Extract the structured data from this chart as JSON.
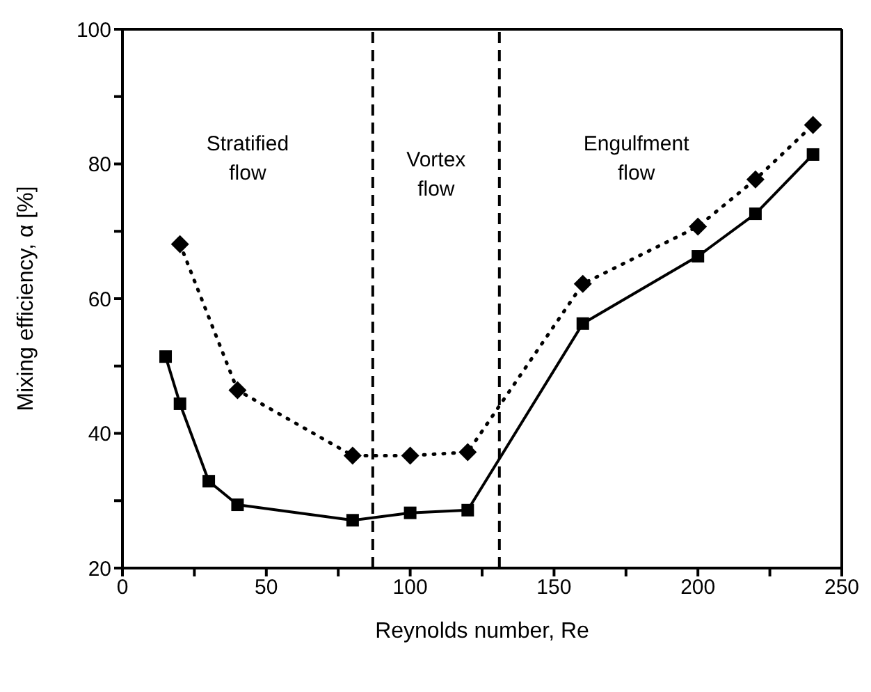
{
  "chart_data": {
    "type": "line",
    "xlabel": "Reynolds number, Re",
    "ylabel": "Mixing efficiency, α [%]",
    "series": [
      {
        "color": "#000000",
        "marker": "square",
        "line_style": "solid",
        "x": [
          15,
          20,
          30,
          40,
          80,
          100,
          120,
          160,
          200,
          220,
          240
        ],
        "values": [
          51.4,
          44.4,
          32.9,
          29.4,
          27.1,
          28.2,
          28.6,
          56.3,
          66.3,
          72.6,
          81.4
        ]
      },
      {
        "color": "#000000",
        "marker": "diamond",
        "line_style": "dotted",
        "x": [
          20,
          40,
          80,
          100,
          120,
          160,
          200,
          220,
          240
        ],
        "values": [
          68.1,
          46.4,
          36.7,
          36.7,
          37.2,
          62.2,
          70.7,
          77.7,
          85.8
        ]
      }
    ],
    "xlim": [
      0,
      250
    ],
    "xticks": [
      0,
      {
        "value": 25,
        "label": null
      },
      50,
      {
        "value": 75,
        "label": null
      },
      100,
      {
        "value": 125,
        "label": null
      },
      150,
      {
        "value": 175,
        "label": null
      },
      200,
      {
        "value": 225,
        "label": null
      },
      250
    ],
    "ylim": [
      20,
      100
    ],
    "yticks": [
      20,
      {
        "value": 30,
        "label": null
      },
      40,
      {
        "value": 50,
        "label": null
      },
      60,
      {
        "value": 70,
        "label": null
      },
      80,
      {
        "value": 90,
        "label": null
      },
      100
    ],
    "ref_lines": [
      {
        "axis": "x",
        "value": 87,
        "color": "#000000",
        "line_style": "dashed"
      },
      {
        "axis": "x",
        "value": 131,
        "color": "#000000",
        "line_style": "dashed"
      }
    ],
    "annotations": [
      "Stratified\nflow",
      "Vortex\nflow",
      "Engulfment\nflow"
    ],
    "grid": false,
    "legend": false
  }
}
